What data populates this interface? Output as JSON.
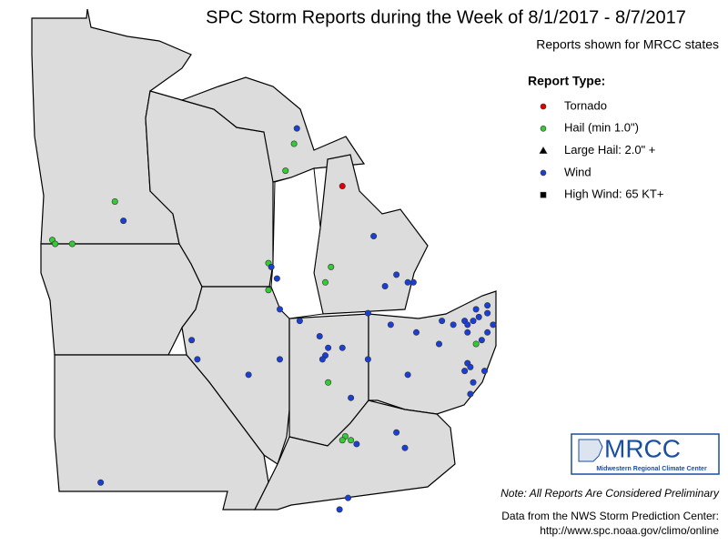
{
  "header": {
    "title": "SPC Storm Reports during the Week of 8/1/2017 - 8/7/2017",
    "subtitle": "Reports shown for MRCC states"
  },
  "legend": {
    "title": "Report Type:",
    "items": [
      {
        "label": "Tornado",
        "color": "#e00000",
        "marker": "circle",
        "points": [
          [
            -85.9,
            45.0
          ]
        ]
      },
      {
        "label": "Hail (min 1.0\")",
        "color": "#33cc33",
        "marker": "circle",
        "points": [
          [
            -87.6,
            46.1
          ],
          [
            -87.9,
            45.4
          ],
          [
            -93.9,
            44.6
          ],
          [
            -96.1,
            43.6
          ],
          [
            -96.0,
            43.5
          ],
          [
            -95.4,
            43.5
          ],
          [
            -88.5,
            43.0
          ],
          [
            -86.3,
            42.9
          ],
          [
            -86.5,
            42.5
          ],
          [
            -88.5,
            42.3
          ],
          [
            -81.2,
            40.9
          ],
          [
            -86.4,
            39.9
          ],
          [
            -85.8,
            38.5
          ],
          [
            -85.6,
            38.4
          ],
          [
            -85.9,
            38.4
          ]
        ]
      },
      {
        "label": "Large Hail: 2.0\" +",
        "color": "#000000",
        "marker": "triangle",
        "points": []
      },
      {
        "label": "Wind",
        "color": "#1a3fd6",
        "marker": "circle",
        "points": [
          [
            -87.5,
            46.5
          ],
          [
            -93.6,
            44.1
          ],
          [
            -88.4,
            42.9
          ],
          [
            -88.2,
            42.6
          ],
          [
            -88.1,
            41.8
          ],
          [
            -84.8,
            43.7
          ],
          [
            -84.0,
            42.7
          ],
          [
            -83.6,
            42.5
          ],
          [
            -84.4,
            42.4
          ],
          [
            -83.4,
            42.5
          ],
          [
            -85.0,
            41.7
          ],
          [
            -87.4,
            41.5
          ],
          [
            -84.2,
            41.4
          ],
          [
            -83.3,
            41.2
          ],
          [
            -82.4,
            41.5
          ],
          [
            -82.0,
            41.4
          ],
          [
            -81.6,
            41.5
          ],
          [
            -81.5,
            41.4
          ],
          [
            -81.3,
            41.5
          ],
          [
            -80.8,
            41.9
          ],
          [
            -80.8,
            41.7
          ],
          [
            -81.2,
            41.8
          ],
          [
            -81.1,
            41.6
          ],
          [
            -80.6,
            41.4
          ],
          [
            -80.8,
            41.2
          ],
          [
            -81.5,
            41.2
          ],
          [
            -81.0,
            41.0
          ],
          [
            -82.5,
            40.9
          ],
          [
            -91.2,
            41.0
          ],
          [
            -91.0,
            40.5
          ],
          [
            -89.2,
            40.1
          ],
          [
            -88.1,
            40.5
          ],
          [
            -86.7,
            41.1
          ],
          [
            -86.4,
            40.8
          ],
          [
            -85.9,
            40.8
          ],
          [
            -86.5,
            40.6
          ],
          [
            -86.6,
            40.5
          ],
          [
            -85.0,
            40.5
          ],
          [
            -83.6,
            40.1
          ],
          [
            -81.5,
            40.4
          ],
          [
            -81.4,
            40.3
          ],
          [
            -81.6,
            40.2
          ],
          [
            -80.9,
            40.2
          ],
          [
            -81.3,
            39.9
          ],
          [
            -81.4,
            39.6
          ],
          [
            -85.6,
            39.5
          ],
          [
            -84.0,
            38.6
          ],
          [
            -83.7,
            38.2
          ],
          [
            -85.4,
            38.3
          ],
          [
            -94.4,
            37.3
          ],
          [
            -85.7,
            36.9
          ],
          [
            -86.0,
            36.6
          ]
        ]
      },
      {
        "label": "High Wind: 65 KT+",
        "color": "#000000",
        "marker": "square",
        "points": []
      }
    ]
  },
  "logo": {
    "name": "MRCC",
    "subtitle": "Midwestern Regional Climate Center"
  },
  "footer": {
    "note": "Note: All Reports Are Considered Preliminary",
    "source": "Data from the NWS Storm Prediction Center:",
    "url": "http://www.spc.noaa.gov/climo/online"
  }
}
